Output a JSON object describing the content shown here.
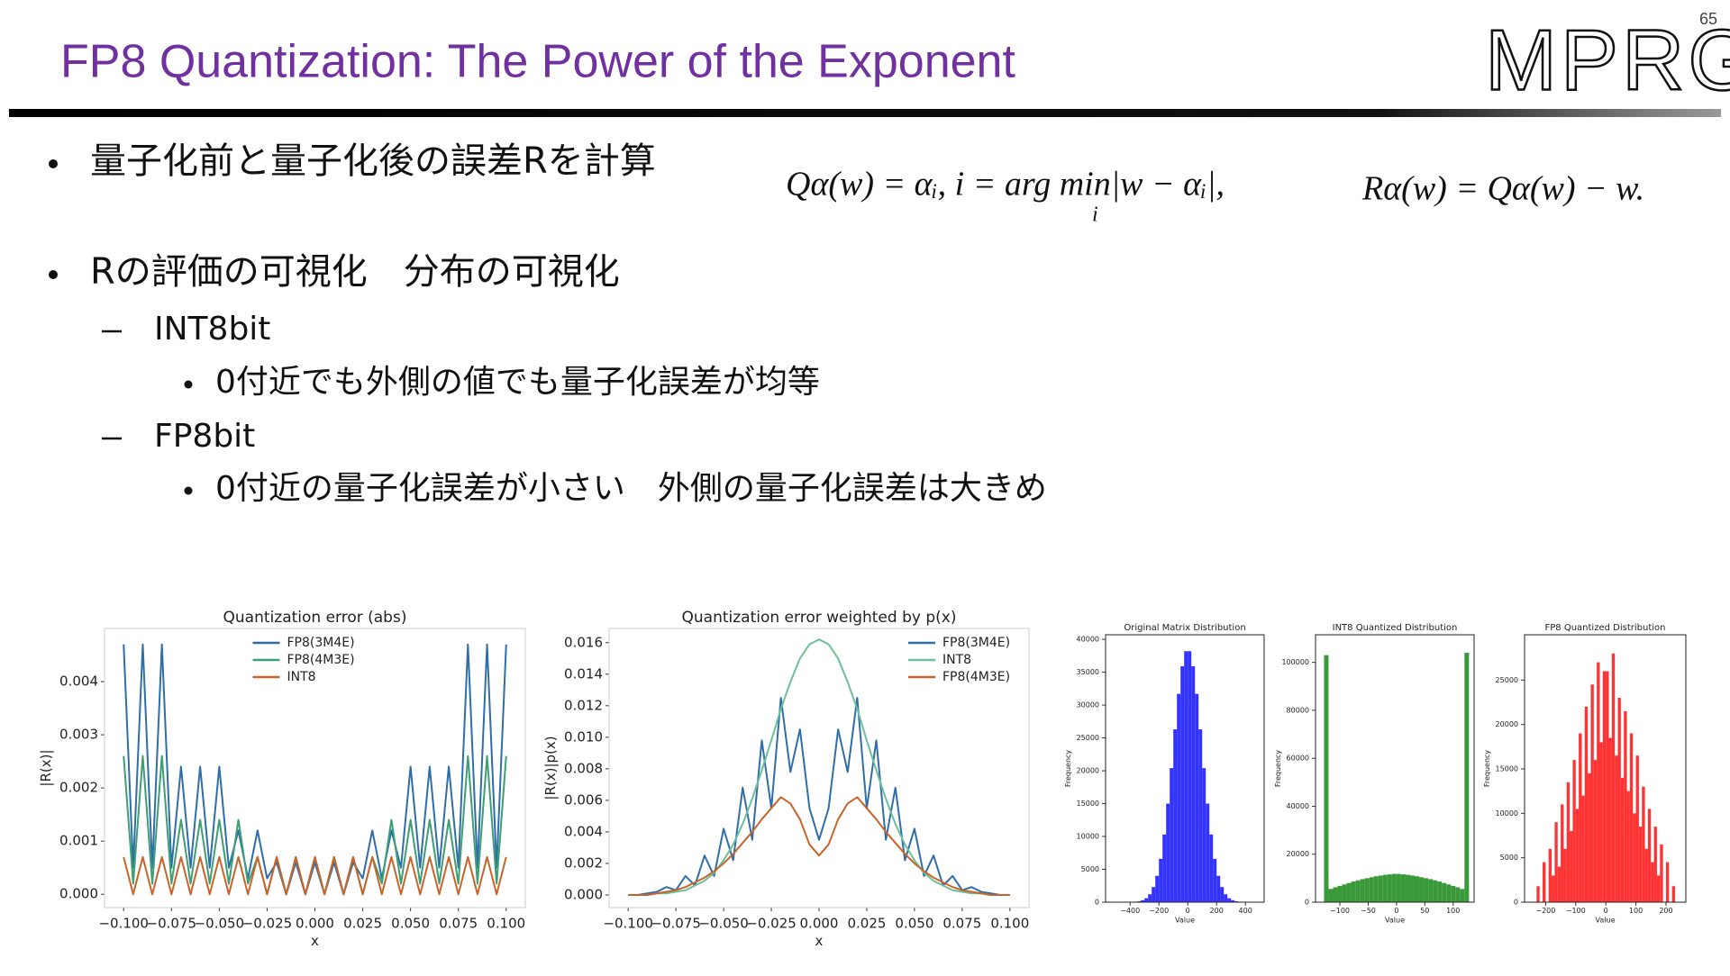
{
  "page_number": "65",
  "title": "FP8 Quantization: The Power of the Exponent",
  "logo": "MPRG",
  "bullets": [
    {
      "text": "量子化前と量子化後の誤差Rを計算"
    },
    {
      "text": "Rの評価の可視化　分布の可視化",
      "children": [
        {
          "text": "INT8bit",
          "children": [
            {
              "text": "0付近でも外側の値でも量子化誤差が均等"
            }
          ]
        },
        {
          "text": "FP8bit",
          "children": [
            {
              "text": "0付近の量子化誤差が小さい　外側の量子化誤差は大きめ"
            }
          ]
        }
      ]
    }
  ],
  "equations": [
    {
      "text": "Qα(w) = αᵢ,  i = arg min|w − αᵢ|,",
      "index": "i"
    },
    {
      "text": "Rα(w) = Qα(w) − w."
    }
  ],
  "chart_data": [
    {
      "type": "line",
      "title": "Quantization error (abs)",
      "x_label": "x",
      "y_label": "|R(x)|",
      "x": [
        -0.1,
        -0.095,
        -0.09,
        -0.085,
        -0.08,
        -0.075,
        -0.07,
        -0.065,
        -0.06,
        -0.055,
        -0.05,
        -0.045,
        -0.04,
        -0.035,
        -0.03,
        -0.025,
        -0.02,
        -0.015,
        -0.01,
        -0.005,
        0,
        0.005,
        0.01,
        0.015,
        0.02,
        0.025,
        0.03,
        0.035,
        0.04,
        0.045,
        0.05,
        0.055,
        0.06,
        0.065,
        0.07,
        0.075,
        0.08,
        0.085,
        0.09,
        0.095,
        0.1
      ],
      "series": [
        {
          "name": "FP8(3M4E)",
          "color": "#2f6ea8",
          "values": [
            0.0047,
            0.0005,
            0.0047,
            0.0005,
            0.0047,
            0.0005,
            0.0024,
            0.0005,
            0.0024,
            0.0005,
            0.0024,
            0.0005,
            0.0012,
            0.0003,
            0.0012,
            0.0003,
            0.0006,
            0,
            0.0006,
            0,
            0.0006,
            0,
            0.0006,
            0,
            0.0006,
            0.0003,
            0.0012,
            0.0003,
            0.0012,
            0.0005,
            0.0024,
            0.0005,
            0.0024,
            0.0005,
            0.0024,
            0.0005,
            0.0047,
            0.0005,
            0.0047,
            0.0005,
            0.0047
          ]
        },
        {
          "name": "FP8(4M3E)",
          "color": "#3f9f74",
          "values": [
            0.0026,
            0.0002,
            0.0026,
            0.0002,
            0.0026,
            0.0002,
            0.0014,
            0.0002,
            0.0014,
            0.0002,
            0.0014,
            0.0002,
            0.0014,
            0.0002,
            0.0007,
            0,
            0.0007,
            0,
            0.0007,
            0,
            0.0007,
            0,
            0.0007,
            0,
            0.0007,
            0,
            0.0007,
            0.0002,
            0.0014,
            0.0002,
            0.0014,
            0.0002,
            0.0014,
            0.0002,
            0.0014,
            0.0002,
            0.0026,
            0.0002,
            0.0026,
            0.0002,
            0.0026
          ]
        },
        {
          "name": "INT8",
          "color": "#c8642a",
          "values": [
            0.0007,
            0,
            0.0007,
            0,
            0.0007,
            0,
            0.0007,
            0,
            0.0007,
            0,
            0.0007,
            0,
            0.0007,
            0,
            0.0007,
            0,
            0.0007,
            0,
            0.0007,
            0,
            0.0007,
            0,
            0.0007,
            0,
            0.0007,
            0,
            0.0007,
            0,
            0.0007,
            0,
            0.0007,
            0,
            0.0007,
            0,
            0.0007,
            0,
            0.0007,
            0,
            0.0007,
            0,
            0.0007
          ]
        }
      ],
      "xlim": [
        -0.11,
        0.11
      ],
      "ylim": [
        -0.00025,
        0.005
      ],
      "xticks": [
        {
          "value": -0.1,
          "label": "−0.100"
        },
        {
          "value": -0.075,
          "label": "−0.075"
        },
        {
          "value": -0.05,
          "label": "−0.050"
        },
        {
          "value": -0.025,
          "label": "−0.025"
        },
        {
          "value": 0,
          "label": "0.000"
        },
        0.025,
        {
          "value": 0.05,
          "label": "0.050"
        },
        0.075,
        {
          "value": 0.1,
          "label": "0.100"
        }
      ],
      "yticks": [
        {
          "value": 0,
          "label": "0.000"
        },
        0.001,
        0.002,
        0.003,
        0.004
      ],
      "legend": "upper center"
    },
    {
      "type": "line",
      "title": "Quantization error weighted by p(x)",
      "x_label": "x",
      "y_label": "|R(x)|p(x)",
      "x": [
        -0.1,
        -0.095,
        -0.09,
        -0.085,
        -0.08,
        -0.075,
        -0.07,
        -0.065,
        -0.06,
        -0.055,
        -0.05,
        -0.045,
        -0.04,
        -0.035,
        -0.03,
        -0.025,
        -0.02,
        -0.015,
        -0.01,
        -0.005,
        0,
        0.005,
        0.01,
        0.015,
        0.02,
        0.025,
        0.03,
        0.035,
        0.04,
        0.045,
        0.05,
        0.055,
        0.06,
        0.065,
        0.07,
        0.075,
        0.08,
        0.085,
        0.09,
        0.095,
        0.1
      ],
      "series": [
        {
          "name": "FP8(3M4E)",
          "color": "#2f6ea8",
          "values": [
            0,
            0,
            0.0001,
            0.0002,
            0.0005,
            0.0003,
            0.0012,
            0.0006,
            0.0025,
            0.0012,
            0.0042,
            0.0022,
            0.0068,
            0.0035,
            0.0098,
            0.0055,
            0.0125,
            0.0078,
            0.0105,
            0.0055,
            0.0035,
            0.0055,
            0.0105,
            0.0078,
            0.0125,
            0.0055,
            0.0098,
            0.0035,
            0.0068,
            0.0022,
            0.0042,
            0.0012,
            0.0025,
            0.0006,
            0.0012,
            0.0003,
            0.0005,
            0.0002,
            0.0001,
            0,
            0
          ]
        },
        {
          "name": "INT8",
          "color": "#6dbf98",
          "values": [
            0,
            0,
            0,
            0.0001,
            0.0001,
            0.0002,
            0.0003,
            0.0006,
            0.0009,
            0.0014,
            0.0022,
            0.0032,
            0.0045,
            0.0061,
            0.0079,
            0.0098,
            0.0118,
            0.0135,
            0.015,
            0.0159,
            0.0162,
            0.0159,
            0.015,
            0.0135,
            0.0118,
            0.0098,
            0.0079,
            0.0061,
            0.0045,
            0.0032,
            0.0022,
            0.0014,
            0.0009,
            0.0006,
            0.0003,
            0.0002,
            0.0001,
            0.0001,
            0,
            0,
            0
          ]
        },
        {
          "name": "FP8(4M3E)",
          "color": "#c8642a",
          "values": [
            0,
            0,
            0,
            0.0001,
            0.0002,
            0.0003,
            0.0005,
            0.0008,
            0.0011,
            0.0015,
            0.002,
            0.0026,
            0.0033,
            0.004,
            0.0048,
            0.0055,
            0.0062,
            0.0058,
            0.0048,
            0.0032,
            0.0025,
            0.0032,
            0.0048,
            0.0058,
            0.0062,
            0.0055,
            0.0048,
            0.004,
            0.0033,
            0.0026,
            0.002,
            0.0015,
            0.0011,
            0.0008,
            0.0005,
            0.0003,
            0.0002,
            0.0001,
            0,
            0,
            0
          ]
        }
      ],
      "xlim": [
        -0.11,
        0.11
      ],
      "ylim": [
        -0.0008,
        0.0169
      ],
      "xticks": [
        {
          "value": -0.1,
          "label": "−0.100"
        },
        {
          "value": -0.075,
          "label": "−0.075"
        },
        {
          "value": -0.05,
          "label": "−0.050"
        },
        {
          "value": -0.025,
          "label": "−0.025"
        },
        {
          "value": 0,
          "label": "0.000"
        },
        0.025,
        {
          "value": 0.05,
          "label": "0.050"
        },
        0.075,
        {
          "value": 0.1,
          "label": "0.100"
        }
      ],
      "yticks": [
        {
          "value": 0,
          "label": "0.000"
        },
        0.002,
        0.004,
        0.006,
        0.008,
        {
          "value": 0.01,
          "label": "0.010"
        },
        0.012,
        0.014,
        0.016
      ],
      "legend": "upper right"
    },
    {
      "type": "histogram",
      "title": "Original Matrix Distribution",
      "x_label": "Value",
      "y_label": "Frequency",
      "color": "#3333ff",
      "bins": [
        -400,
        -375,
        -350,
        -325,
        -300,
        -275,
        -250,
        -225,
        -200,
        -175,
        -150,
        -125,
        -100,
        -75,
        -50,
        -25,
        0,
        25,
        50,
        75,
        100,
        125,
        150,
        175,
        200,
        225,
        250,
        275,
        300,
        325,
        350,
        375,
        400
      ],
      "values": [
        20,
        50,
        130,
        300,
        600,
        1200,
        2300,
        4000,
        6600,
        10300,
        15000,
        20400,
        26300,
        31700,
        35900,
        38200,
        38200,
        35900,
        31700,
        26300,
        20400,
        15000,
        10300,
        6600,
        4000,
        2300,
        1200,
        600,
        300,
        130,
        50,
        20
      ],
      "xlim": [
        -570,
        530
      ],
      "ylim": [
        0,
        40700
      ],
      "xticks": [
        {
          "value": -400,
          "label": "−400"
        },
        {
          "value": -200,
          "label": "−200"
        },
        0,
        200,
        400
      ],
      "yticks": [
        0,
        5000,
        10000,
        15000,
        20000,
        25000,
        30000,
        35000,
        40000
      ]
    },
    {
      "type": "histogram",
      "title": "INT8 Quantized Distribution",
      "x_label": "Value",
      "y_label": "Frequency",
      "color": "#3a9a3a",
      "bins": [
        -128,
        -120,
        -112,
        -104,
        -96,
        -88,
        -80,
        -72,
        -64,
        -56,
        -48,
        -40,
        -32,
        -24,
        -16,
        -8,
        0,
        8,
        16,
        24,
        32,
        40,
        48,
        56,
        64,
        72,
        80,
        88,
        96,
        104,
        112,
        120,
        128
      ],
      "values": [
        103000,
        5500,
        6200,
        6800,
        7400,
        8000,
        8600,
        9100,
        9600,
        10000,
        10400,
        10800,
        11100,
        11400,
        11600,
        11800,
        11800,
        11600,
        11400,
        11100,
        10800,
        10400,
        10000,
        9600,
        9100,
        8600,
        8000,
        7400,
        6800,
        6200,
        5500,
        104000
      ],
      "xlim": [
        -143,
        137
      ],
      "ylim": [
        0,
        111500
      ],
      "xticks": [
        {
          "value": -100,
          "label": "−100"
        },
        {
          "value": -50,
          "label": "−50"
        },
        0,
        50,
        100
      ],
      "yticks": [
        0,
        20000,
        40000,
        60000,
        80000,
        100000
      ]
    },
    {
      "type": "histogram",
      "title": "FP8 Quantized Distribution",
      "x_label": "Value",
      "y_label": "Frequency",
      "color": "#ff3333",
      "bins": [
        -240,
        -230,
        -220,
        -210,
        -200,
        -190,
        -180,
        -170,
        -160,
        -150,
        -140,
        -130,
        -120,
        -110,
        -100,
        -90,
        -80,
        -70,
        -60,
        -50,
        -40,
        -30,
        -20,
        -10,
        0,
        10,
        20,
        30,
        40,
        50,
        60,
        70,
        80,
        90,
        100,
        110,
        120,
        130,
        140,
        150,
        160,
        170,
        180,
        190,
        200,
        210,
        220,
        230,
        240
      ],
      "values": [
        0,
        1800,
        0,
        4500,
        0,
        6000,
        3000,
        9000,
        4000,
        11000,
        6000,
        13500,
        8000,
        16000,
        10500,
        19000,
        12000,
        22000,
        14500,
        24500,
        16000,
        27000,
        18000,
        26000,
        26000,
        18500,
        28000,
        16500,
        23000,
        14000,
        21500,
        12500,
        19000,
        10000,
        16500,
        8500,
        13000,
        6000,
        10500,
        4500,
        8500,
        3000,
        6500,
        0,
        4500,
        0,
        1800,
        0
      ],
      "xlim": [
        -270,
        266
      ],
      "ylim": [
        0,
        30100
      ],
      "xticks": [
        {
          "value": -200,
          "label": "−200"
        },
        {
          "value": -100,
          "label": "−100"
        },
        0,
        100,
        200
      ],
      "yticks": [
        0,
        5000,
        10000,
        15000,
        20000,
        25000
      ]
    }
  ]
}
